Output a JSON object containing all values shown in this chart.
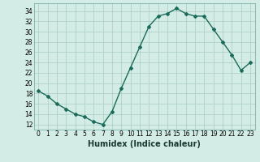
{
  "x": [
    0,
    1,
    2,
    3,
    4,
    5,
    6,
    7,
    8,
    9,
    10,
    11,
    12,
    13,
    14,
    15,
    16,
    17,
    18,
    19,
    20,
    21,
    22,
    23
  ],
  "y": [
    18.5,
    17.5,
    16.0,
    15.0,
    14.0,
    13.5,
    12.5,
    12.0,
    14.5,
    19.0,
    23.0,
    27.0,
    31.0,
    33.0,
    33.5,
    34.5,
    33.5,
    33.0,
    33.0,
    30.5,
    28.0,
    25.5,
    22.5,
    24.0
  ],
  "line_color": "#1a6b5a",
  "marker": "D",
  "marker_size": 2.0,
  "bg_color": "#d4ece6",
  "grid_color": "#afd0c8",
  "xlabel": "Humidex (Indice chaleur)",
  "xlim": [
    -0.5,
    23.5
  ],
  "ylim": [
    11,
    35.5
  ],
  "yticks": [
    12,
    14,
    16,
    18,
    20,
    22,
    24,
    26,
    28,
    30,
    32,
    34
  ],
  "xticks": [
    0,
    1,
    2,
    3,
    4,
    5,
    6,
    7,
    8,
    9,
    10,
    11,
    12,
    13,
    14,
    15,
    16,
    17,
    18,
    19,
    20,
    21,
    22,
    23
  ],
  "tick_label_fontsize": 5.5,
  "xlabel_fontsize": 7.0,
  "line_width": 1.0
}
